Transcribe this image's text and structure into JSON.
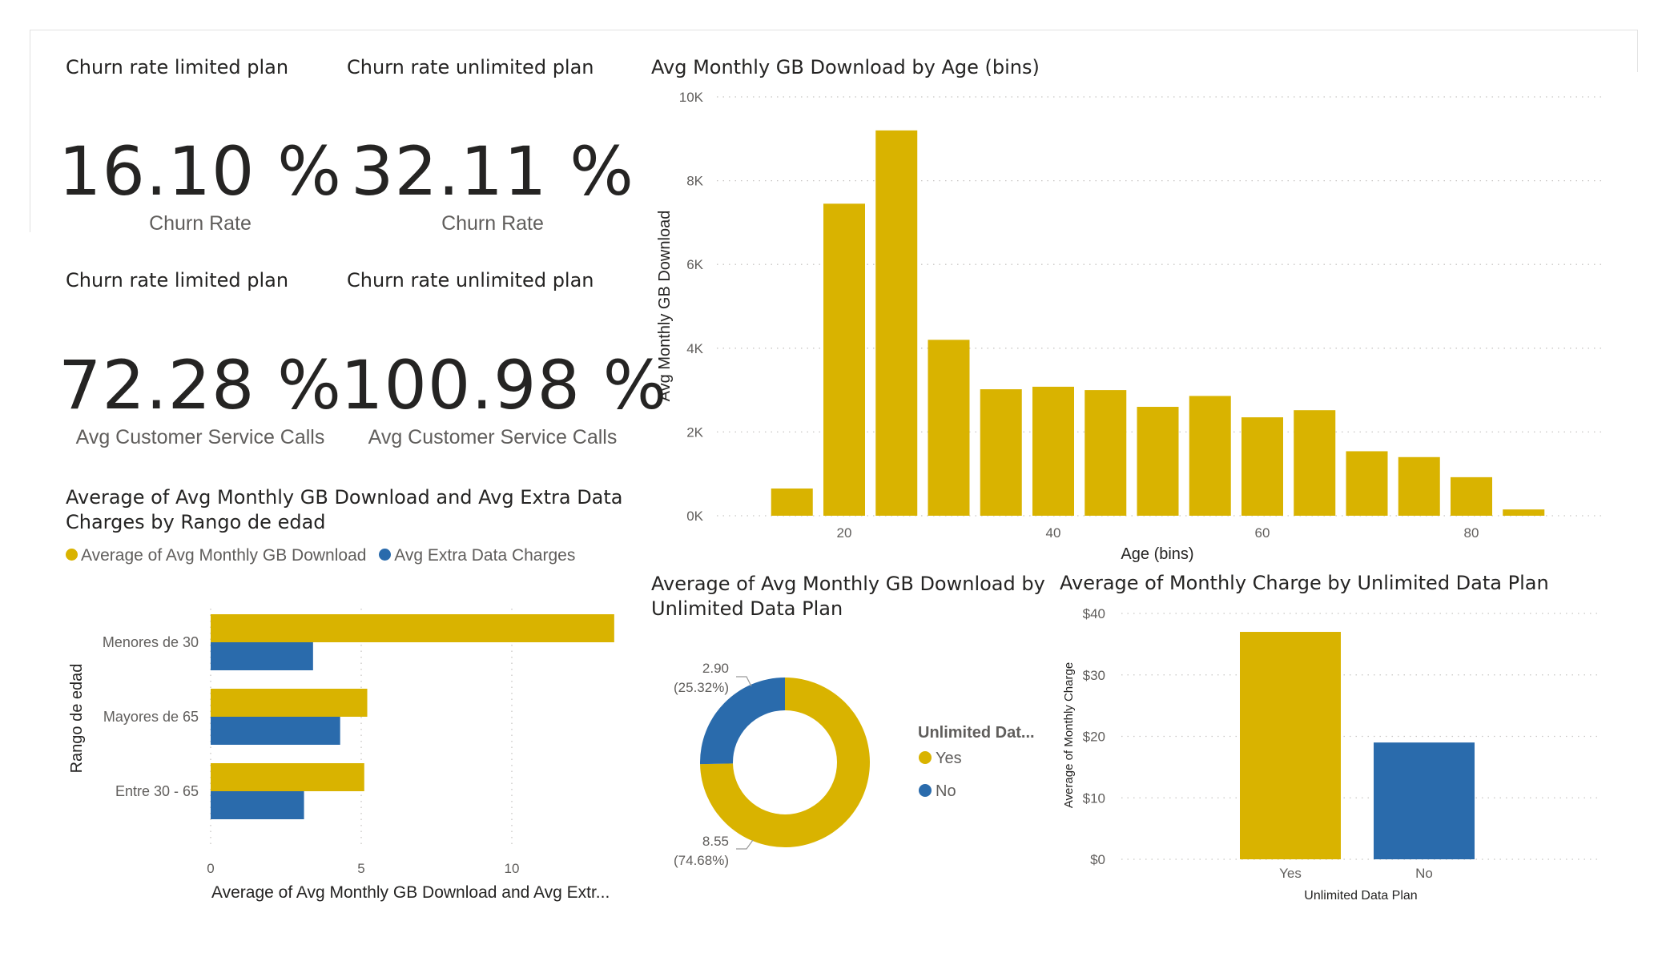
{
  "colors": {
    "yellow": "#d9b300",
    "blue": "#2a6bac",
    "grid": "#c8c6c4",
    "axis_text": "#605e5c"
  },
  "kpis": [
    {
      "title": "Churn rate limited plan",
      "value": "16.10 %",
      "label": "Churn Rate"
    },
    {
      "title": "Churn rate unlimited plan",
      "value": "32.11 %",
      "label": "Churn Rate"
    },
    {
      "title": "Churn rate limited plan",
      "value": "72.28 %",
      "label": "Avg Customer Service Calls"
    },
    {
      "title": "Churn rate unlimited plan",
      "value": "100.98 %",
      "label": "Avg Customer Service Calls"
    }
  ],
  "chart_data": [
    {
      "type": "bar",
      "title": "Avg Monthly GB Download by Age (bins)",
      "xlabel": "Age (bins)",
      "ylabel": "Avg Monthly GB Download",
      "x": [
        15,
        20,
        25,
        30,
        35,
        40,
        45,
        50,
        55,
        60,
        65,
        70,
        75,
        80,
        85
      ],
      "values": [
        650,
        7450,
        9200,
        4200,
        3020,
        3080,
        3000,
        2600,
        2860,
        2350,
        2520,
        1540,
        1400,
        920,
        150
      ],
      "ylim": [
        0,
        10000
      ],
      "yticks": [
        "0K",
        "2K",
        "4K",
        "6K",
        "8K",
        "10K"
      ],
      "xticks": [
        "20",
        "40",
        "60",
        "80"
      ],
      "grid": true
    },
    {
      "type": "bar",
      "orientation": "horizontal",
      "title": "Average of Avg Monthly GB Download and Avg Extra Data Charges by Rango de edad",
      "title_lines": [
        "Average of Avg Monthly GB Download and Avg Extra Data",
        "Charges by Rango de edad"
      ],
      "categories": [
        "Menores de 30",
        "Mayores de 65",
        "Entre 30 - 65"
      ],
      "series": [
        {
          "name": "Average of Avg Monthly GB Download",
          "values": [
            13.4,
            5.2,
            5.1
          ]
        },
        {
          "name": "Avg Extra Data Charges",
          "values": [
            3.4,
            4.3,
            3.1
          ]
        }
      ],
      "xlim": [
        0,
        14
      ],
      "xticks": [
        "0",
        "5",
        "10"
      ],
      "xlabel": "Average of Avg Monthly GB Download and Avg Extr...",
      "ylabel": "Rango de edad",
      "legend": "top-left"
    },
    {
      "type": "pie",
      "donut": true,
      "title": "Average of Avg Monthly GB Download by Unlimited Data Plan",
      "title_lines": [
        "Average of Avg Monthly GB Download by",
        "Unlimited Data Plan"
      ],
      "labels": [
        "Yes",
        "No"
      ],
      "values": [
        8.55,
        2.9
      ],
      "value_labels": [
        "8.55",
        "2.90"
      ],
      "percent_labels": [
        "(74.68%)",
        "(25.32%)"
      ],
      "legend_title": "Unlimited Dat...",
      "legend": "right"
    },
    {
      "type": "bar",
      "title": "Average of Monthly Charge by Unlimited Data Plan",
      "categories": [
        "Yes",
        "No"
      ],
      "values": [
        37,
        19
      ],
      "ylim": [
        0,
        40
      ],
      "yticks": [
        "$0",
        "$10",
        "$20",
        "$30",
        "$40"
      ],
      "xlabel": "Unlimited Data Plan",
      "ylabel": "Average of Monthly Charge",
      "grid": true
    }
  ]
}
